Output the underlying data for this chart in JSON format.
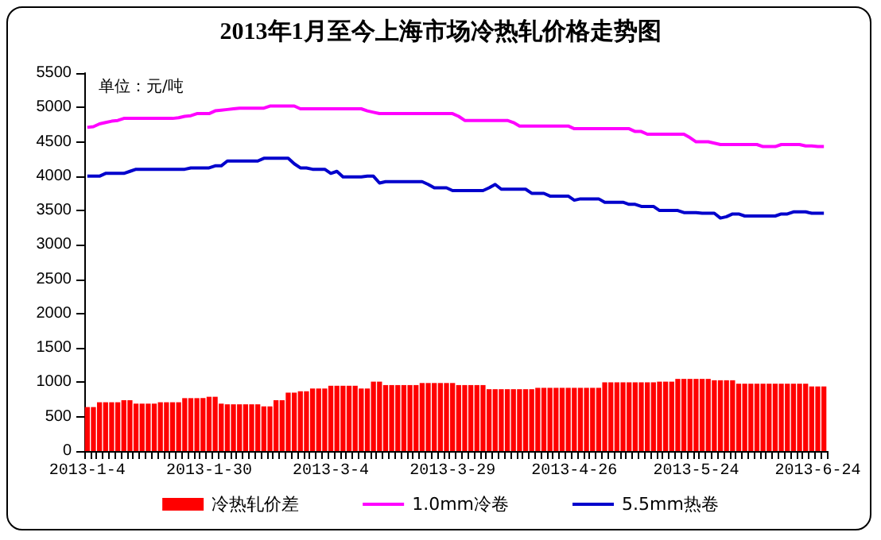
{
  "chart_data": {
    "type": "bar",
    "title": "2013年1月至今上海市场冷热轧价格走势图",
    "annotations": [
      "单位：元/吨"
    ],
    "categories": [
      "2013-1-4",
      null,
      null,
      null,
      null,
      null,
      null,
      null,
      null,
      null,
      null,
      null,
      null,
      null,
      null,
      null,
      null,
      null,
      null,
      null,
      "2013-1-30",
      null,
      null,
      null,
      null,
      null,
      null,
      null,
      null,
      null,
      null,
      null,
      null,
      null,
      null,
      null,
      null,
      null,
      null,
      null,
      "2013-3-4",
      null,
      null,
      null,
      null,
      null,
      null,
      null,
      null,
      null,
      null,
      null,
      null,
      null,
      null,
      null,
      null,
      null,
      null,
      null,
      "2013-3-29",
      null,
      null,
      null,
      null,
      null,
      null,
      null,
      null,
      null,
      null,
      null,
      null,
      null,
      null,
      null,
      null,
      null,
      null,
      null,
      "2013-4-26",
      null,
      null,
      null,
      null,
      null,
      null,
      null,
      null,
      null,
      null,
      null,
      null,
      null,
      null,
      null,
      null,
      null,
      null,
      null,
      "2013-5-24",
      null,
      null,
      null,
      null,
      null,
      null,
      null,
      null,
      null,
      null,
      null,
      null,
      null,
      null,
      null,
      null,
      null,
      null,
      null,
      "2013-6-24",
      null
    ],
    "series": [
      {
        "name": "冷热轧价差",
        "color": "#ff0000",
        "values": [
          640,
          640,
          710,
          710,
          710,
          710,
          740,
          740,
          690,
          690,
          690,
          690,
          710,
          710,
          710,
          710,
          770,
          770,
          770,
          770,
          790,
          790,
          690,
          680,
          680,
          680,
          680,
          680,
          680,
          650,
          650,
          740,
          740,
          850,
          850,
          870,
          870,
          910,
          910,
          910,
          950,
          950,
          950,
          950,
          950,
          910,
          910,
          1010,
          1010,
          960,
          960,
          960,
          960,
          960,
          960,
          990,
          990,
          990,
          990,
          990,
          990,
          960,
          960,
          960,
          960,
          960,
          900,
          900,
          900,
          900,
          900,
          900,
          900,
          900,
          920,
          920,
          920,
          920,
          920,
          920,
          920,
          920,
          920,
          920,
          920,
          1000,
          1000,
          1000,
          1000,
          1000,
          1000,
          1000,
          1000,
          1000,
          1010,
          1010,
          1010,
          1050,
          1050,
          1050,
          1050,
          1050,
          1050,
          1030,
          1030,
          1030,
          1030,
          980,
          980,
          980,
          980,
          980,
          980,
          980,
          980,
          980,
          980,
          980,
          980,
          940,
          940,
          940
        ]
      },
      {
        "name": "1.0mm冷卷",
        "type": "line",
        "color": "#ff00ff",
        "values": [
          4710,
          4720,
          4760,
          4780,
          4800,
          4810,
          4840,
          4840,
          4840,
          4840,
          4840,
          4840,
          4840,
          4840,
          4840,
          4850,
          4870,
          4880,
          4910,
          4910,
          4910,
          4950,
          4960,
          4970,
          4980,
          4990,
          4990,
          4990,
          4990,
          4990,
          5020,
          5020,
          5020,
          5020,
          5020,
          4980,
          4980,
          4980,
          4980,
          4980,
          4980,
          4980,
          4980,
          4980,
          4980,
          4980,
          4950,
          4930,
          4910,
          4910,
          4910,
          4910,
          4910,
          4910,
          4910,
          4910,
          4910,
          4910,
          4910,
          4910,
          4910,
          4870,
          4810,
          4810,
          4810,
          4810,
          4810,
          4810,
          4810,
          4810,
          4780,
          4730,
          4730,
          4730,
          4730,
          4730,
          4730,
          4730,
          4730,
          4730,
          4690,
          4690,
          4690,
          4690,
          4690,
          4690,
          4690,
          4690,
          4690,
          4690,
          4650,
          4650,
          4610,
          4610,
          4610,
          4610,
          4610,
          4610,
          4610,
          4560,
          4500,
          4500,
          4500,
          4480,
          4460,
          4460,
          4460,
          4460,
          4460,
          4460,
          4460,
          4430,
          4430,
          4430,
          4460,
          4460,
          4460,
          4460,
          4440,
          4440,
          4430,
          4430
        ]
      },
      {
        "name": "5.5mm热卷",
        "type": "line",
        "color": "#0000cc",
        "values": [
          4000,
          4000,
          4000,
          4040,
          4040,
          4040,
          4040,
          4070,
          4100,
          4100,
          4100,
          4100,
          4100,
          4100,
          4100,
          4100,
          4100,
          4120,
          4120,
          4120,
          4120,
          4150,
          4150,
          4220,
          4220,
          4220,
          4220,
          4220,
          4220,
          4260,
          4260,
          4260,
          4260,
          4260,
          4180,
          4120,
          4120,
          4100,
          4100,
          4100,
          4040,
          4070,
          3990,
          3990,
          3990,
          3990,
          4000,
          4000,
          3900,
          3920,
          3920,
          3920,
          3920,
          3920,
          3920,
          3920,
          3880,
          3830,
          3830,
          3830,
          3790,
          3790,
          3790,
          3790,
          3790,
          3790,
          3830,
          3880,
          3810,
          3810,
          3810,
          3810,
          3810,
          3750,
          3750,
          3750,
          3710,
          3710,
          3710,
          3710,
          3650,
          3670,
          3670,
          3670,
          3670,
          3620,
          3620,
          3620,
          3620,
          3590,
          3590,
          3560,
          3560,
          3560,
          3500,
          3500,
          3500,
          3500,
          3470,
          3470,
          3470,
          3460,
          3460,
          3460,
          3390,
          3410,
          3450,
          3450,
          3420,
          3420,
          3420,
          3420,
          3420,
          3420,
          3450,
          3450,
          3480,
          3480,
          3480,
          3460,
          3460,
          3460
        ]
      }
    ],
    "ylim": [
      0,
      5500
    ],
    "yticks": [
      0,
      500,
      1000,
      1500,
      2000,
      2500,
      3000,
      3500,
      4000,
      4500,
      5000,
      5500
    ],
    "legend": "bottom",
    "marker": "none",
    "line_style": "solid"
  }
}
